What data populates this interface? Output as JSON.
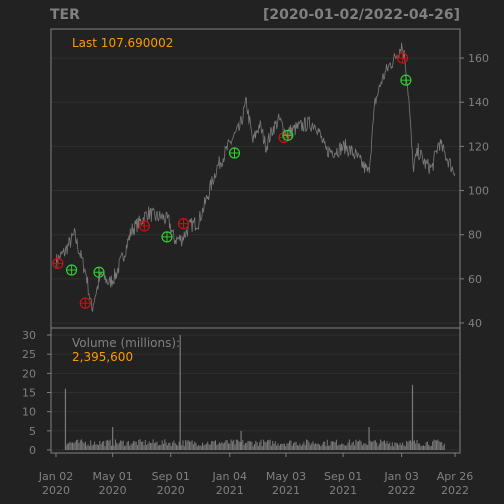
{
  "chart_data": {
    "type": "line",
    "symbol": "TER",
    "date_range": "[2020-01-02/2022-04-26]",
    "last_label": "Last 107.690002",
    "price_ylim": [
      40,
      170
    ],
    "price_ticks": [
      40,
      60,
      80,
      100,
      120,
      140,
      160
    ],
    "price_series": [
      {
        "x": "2020-01-02",
        "y": 68
      },
      {
        "x": "2020-01-20",
        "y": 72
      },
      {
        "x": "2020-02-10",
        "y": 80
      },
      {
        "x": "2020-02-21",
        "y": 72
      },
      {
        "x": "2020-03-06",
        "y": 62
      },
      {
        "x": "2020-03-18",
        "y": 46
      },
      {
        "x": "2020-03-24",
        "y": 52
      },
      {
        "x": "2020-04-07",
        "y": 62
      },
      {
        "x": "2020-04-24",
        "y": 58
      },
      {
        "x": "2020-05-08",
        "y": 62
      },
      {
        "x": "2020-05-26",
        "y": 72
      },
      {
        "x": "2020-06-10",
        "y": 82
      },
      {
        "x": "2020-06-29",
        "y": 86
      },
      {
        "x": "2020-07-15",
        "y": 90
      },
      {
        "x": "2020-07-30",
        "y": 88
      },
      {
        "x": "2020-08-14",
        "y": 88
      },
      {
        "x": "2020-08-28",
        "y": 86
      },
      {
        "x": "2020-09-08",
        "y": 78
      },
      {
        "x": "2020-09-24",
        "y": 78
      },
      {
        "x": "2020-10-12",
        "y": 84
      },
      {
        "x": "2020-10-30",
        "y": 86
      },
      {
        "x": "2020-11-16",
        "y": 96
      },
      {
        "x": "2020-12-07",
        "y": 110
      },
      {
        "x": "2020-12-28",
        "y": 118
      },
      {
        "x": "2021-01-11",
        "y": 124
      },
      {
        "x": "2021-01-25",
        "y": 128
      },
      {
        "x": "2021-02-08",
        "y": 140
      },
      {
        "x": "2021-02-22",
        "y": 122
      },
      {
        "x": "2021-03-08",
        "y": 130
      },
      {
        "x": "2021-03-22",
        "y": 120
      },
      {
        "x": "2021-04-05",
        "y": 128
      },
      {
        "x": "2021-04-19",
        "y": 132
      },
      {
        "x": "2021-05-03",
        "y": 126
      },
      {
        "x": "2021-05-24",
        "y": 128
      },
      {
        "x": "2021-06-14",
        "y": 130
      },
      {
        "x": "2021-07-06",
        "y": 130
      },
      {
        "x": "2021-07-26",
        "y": 118
      },
      {
        "x": "2021-08-16",
        "y": 118
      },
      {
        "x": "2021-09-06",
        "y": 120
      },
      {
        "x": "2021-09-27",
        "y": 116
      },
      {
        "x": "2021-10-11",
        "y": 112
      },
      {
        "x": "2021-10-25",
        "y": 108
      },
      {
        "x": "2021-11-08",
        "y": 140
      },
      {
        "x": "2021-11-22",
        "y": 150
      },
      {
        "x": "2021-12-06",
        "y": 156
      },
      {
        "x": "2021-12-20",
        "y": 160
      },
      {
        "x": "2022-01-03",
        "y": 166
      },
      {
        "x": "2022-01-10",
        "y": 160
      },
      {
        "x": "2022-01-18",
        "y": 142
      },
      {
        "x": "2022-01-27",
        "y": 110
      },
      {
        "x": "2022-02-07",
        "y": 118
      },
      {
        "x": "2022-02-22",
        "y": 112
      },
      {
        "x": "2022-03-08",
        "y": 110
      },
      {
        "x": "2022-03-23",
        "y": 122
      },
      {
        "x": "2022-04-06",
        "y": 116
      },
      {
        "x": "2022-04-26",
        "y": 107.69
      }
    ],
    "signals": [
      {
        "x": "2020-01-06",
        "y": 67,
        "type": "sell"
      },
      {
        "x": "2020-02-04",
        "y": 64,
        "type": "buy"
      },
      {
        "x": "2020-03-04",
        "y": 49,
        "type": "sell"
      },
      {
        "x": "2020-04-02",
        "y": 63,
        "type": "buy"
      },
      {
        "x": "2020-07-07",
        "y": 84,
        "type": "sell"
      },
      {
        "x": "2020-08-24",
        "y": 79,
        "type": "buy"
      },
      {
        "x": "2020-09-28",
        "y": 85,
        "type": "sell"
      },
      {
        "x": "2021-01-14",
        "y": 117,
        "type": "buy"
      },
      {
        "x": "2021-04-29",
        "y": 124,
        "type": "sell"
      },
      {
        "x": "2021-05-07",
        "y": 125,
        "type": "buy"
      },
      {
        "x": "2022-01-05",
        "y": 160,
        "type": "sell"
      },
      {
        "x": "2022-01-12",
        "y": 150,
        "type": "buy"
      }
    ],
    "volume_label": "Volume (millions):",
    "volume_last": "2,395,600",
    "volume_ylim": [
      0,
      30
    ],
    "volume_ticks": [
      0,
      5,
      10,
      15,
      20,
      25,
      30
    ],
    "volume_base": 2,
    "volume_spikes": [
      {
        "x": "2020-01-22",
        "y": 16
      },
      {
        "x": "2020-05-01",
        "y": 6
      },
      {
        "x": "2020-09-21",
        "y": 30
      },
      {
        "x": "2021-01-28",
        "y": 5
      },
      {
        "x": "2021-10-26",
        "y": 6
      },
      {
        "x": "2022-01-26",
        "y": 17
      }
    ],
    "x_ticks": [
      {
        "x": "2020-01-02",
        "label": "Jan 02\n2020"
      },
      {
        "x": "2020-05-01",
        "label": "May 01\n2020"
      },
      {
        "x": "2020-09-01",
        "label": "Sep 01\n2020"
      },
      {
        "x": "2021-01-04",
        "label": "Jan 04\n2021"
      },
      {
        "x": "2021-05-03",
        "label": "May 03\n2021"
      },
      {
        "x": "2021-09-01",
        "label": "Sep 01\n2021"
      },
      {
        "x": "2022-01-03",
        "label": "Jan 03\n2022"
      },
      {
        "x": "2022-04-26",
        "label": "Apr 26\n2022"
      }
    ],
    "grid": true,
    "colors": {
      "background": "#222222",
      "price_line": "#7a7a7a",
      "volume_bar": "#7a7a7a",
      "axis_text": "#808080",
      "last_label": "#ff9900",
      "buy_marker": "#33cc33",
      "sell_marker": "#cc1111",
      "grid": "#2f2f2f"
    }
  }
}
